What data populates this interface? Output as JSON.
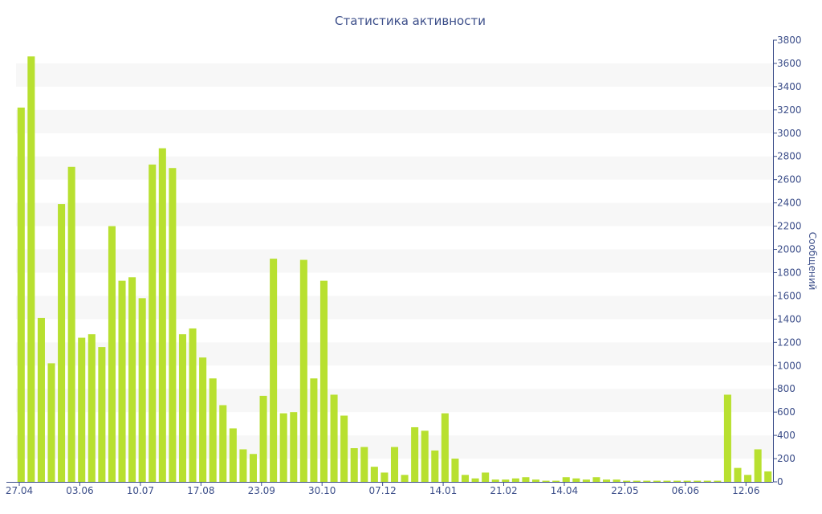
{
  "chart_data": {
    "type": "bar",
    "title": "Статистика активности",
    "xlabel": "",
    "ylabel": "Сообщений",
    "ylim": [
      0,
      3800
    ],
    "y_ticks": [
      0,
      200,
      400,
      600,
      800,
      1000,
      1200,
      1400,
      1600,
      1800,
      2000,
      2200,
      2400,
      2600,
      2800,
      3000,
      3200,
      3400,
      3600,
      3800
    ],
    "x_tick_labels": [
      {
        "label": "27.04",
        "index": 0
      },
      {
        "label": "03.06",
        "index": 6
      },
      {
        "label": "10.07",
        "index": 12
      },
      {
        "label": "17.08",
        "index": 18
      },
      {
        "label": "23.09",
        "index": 24
      },
      {
        "label": "30.10",
        "index": 30
      },
      {
        "label": "07.12",
        "index": 36
      },
      {
        "label": "14.01",
        "index": 42
      },
      {
        "label": "21.02",
        "index": 48
      },
      {
        "label": "14.04",
        "index": 54
      },
      {
        "label": "22.05",
        "index": 60
      },
      {
        "label": "06.06",
        "index": 66
      },
      {
        "label": "12.06",
        "index": 72
      }
    ],
    "values": [
      3220,
      3660,
      1410,
      1020,
      2390,
      2710,
      1240,
      1270,
      1160,
      2200,
      1730,
      1760,
      1580,
      2730,
      2870,
      2700,
      1270,
      1320,
      1070,
      890,
      660,
      460,
      280,
      240,
      740,
      1920,
      590,
      600,
      1910,
      890,
      1730,
      750,
      570,
      290,
      300,
      130,
      80,
      300,
      60,
      470,
      440,
      270,
      590,
      200,
      60,
      30,
      80,
      20,
      20,
      30,
      40,
      20,
      10,
      10,
      40,
      30,
      20,
      40,
      20,
      20,
      10,
      10,
      10,
      10,
      10,
      10,
      10,
      10,
      10,
      10,
      750,
      120,
      60,
      280,
      90
    ],
    "bar_color": "#b8e030",
    "band_color": "#f7f7f7",
    "axis_color": "#3d4f8a",
    "grid": "alternating bands",
    "y_axis_side": "right"
  }
}
